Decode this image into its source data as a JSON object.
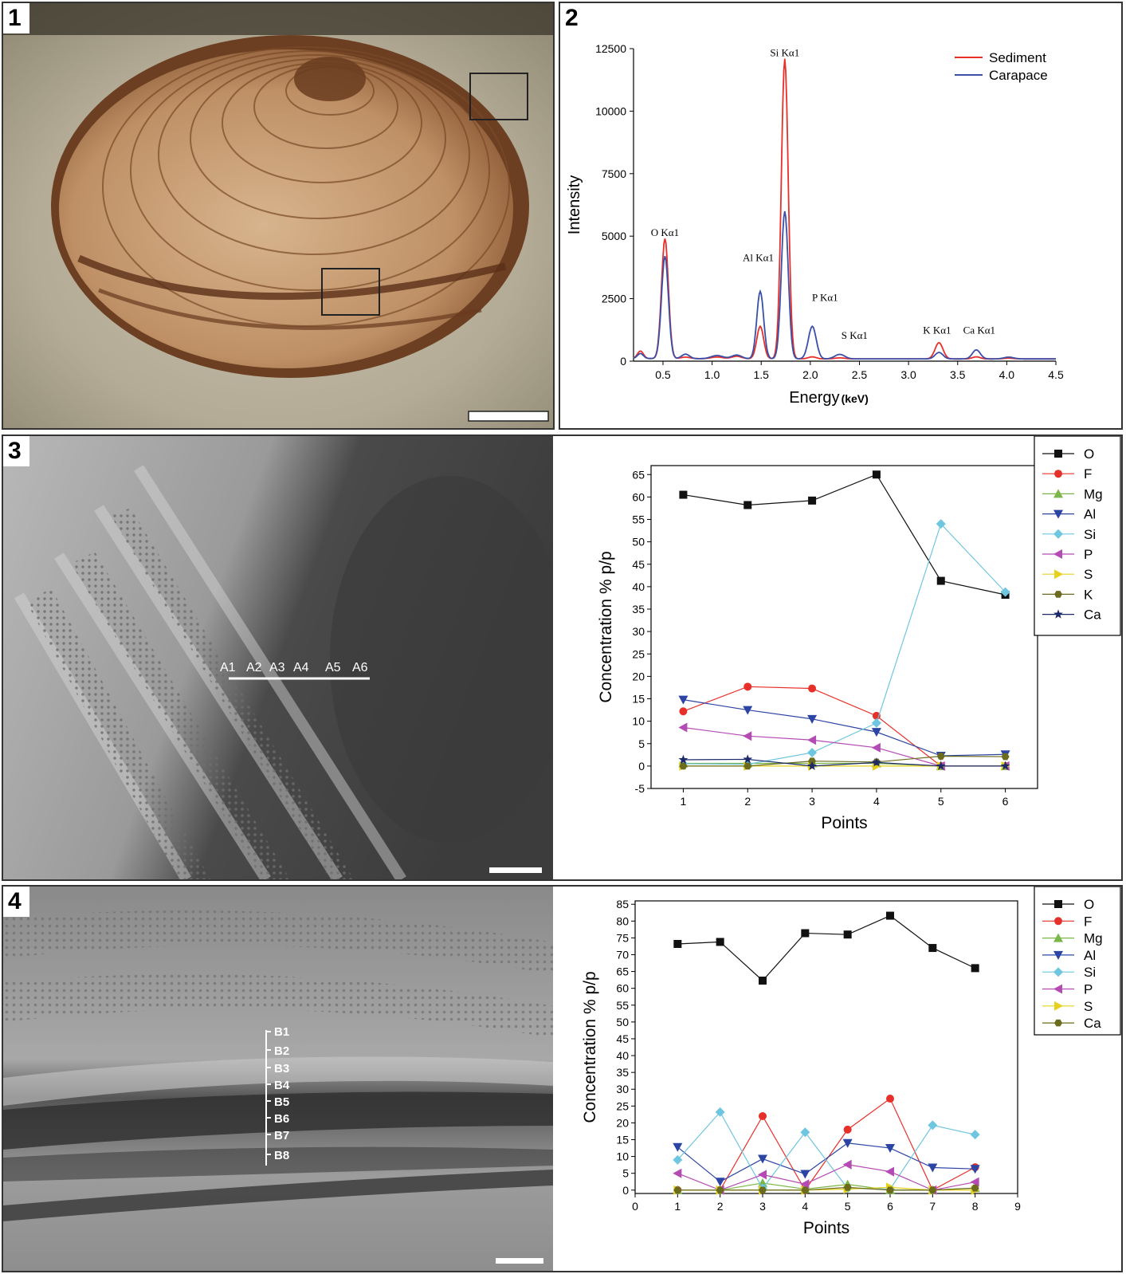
{
  "panels": [
    {
      "num": "1"
    },
    {
      "num": "2"
    },
    {
      "num": "3"
    },
    {
      "num": "4"
    }
  ],
  "photo3": {
    "transect_labels": [
      "A1",
      "A2",
      "A3",
      "A4",
      "A5",
      "A6"
    ]
  },
  "photo4": {
    "transect_labels": [
      "B1",
      "B2",
      "B3",
      "B4",
      "B5",
      "B6",
      "B7",
      "B8"
    ]
  },
  "chart_data": [
    {
      "id": "spectrum",
      "type": "line",
      "xlabel": "Energy",
      "xlabel_unit": "(keV)",
      "ylabel": "Intensity",
      "xlim": [
        0.2,
        4.5
      ],
      "ylim": [
        0,
        12500
      ],
      "xticks": [
        "0.5",
        "1.0",
        "1.5",
        "2.0",
        "2.5",
        "3.0",
        "3.5",
        "4.0",
        "4.5"
      ],
      "yticks": [
        "0",
        "2500",
        "5000",
        "7500",
        "10000",
        "12500"
      ],
      "legend_position": "top-right",
      "series": [
        {
          "name": "Sediment",
          "color": "#e8302a",
          "peaks": [
            [
              0.27,
              300,
              0.03
            ],
            [
              0.52,
              4800,
              0.035
            ],
            [
              0.73,
              60,
              0.05
            ],
            [
              1.05,
              70,
              0.06
            ],
            [
              1.25,
              100,
              0.05
            ],
            [
              1.49,
              1300,
              0.035
            ],
            [
              1.74,
              12000,
              0.035
            ],
            [
              2.02,
              80,
              0.04
            ],
            [
              2.3,
              40,
              0.05
            ],
            [
              3.31,
              650,
              0.04
            ],
            [
              3.69,
              80,
              0.04
            ],
            [
              4.02,
              30,
              0.05
            ]
          ]
        },
        {
          "name": "Carapace",
          "color": "#3a4fa8",
          "peaks": [
            [
              0.27,
              200,
              0.03
            ],
            [
              0.52,
              4100,
              0.035
            ],
            [
              0.73,
              180,
              0.04
            ],
            [
              1.05,
              130,
              0.06
            ],
            [
              1.25,
              150,
              0.05
            ],
            [
              1.49,
              2700,
              0.035
            ],
            [
              1.74,
              5900,
              0.035
            ],
            [
              2.02,
              1300,
              0.04
            ],
            [
              2.3,
              180,
              0.05
            ],
            [
              3.31,
              260,
              0.04
            ],
            [
              3.69,
              360,
              0.04
            ],
            [
              4.02,
              70,
              0.05
            ]
          ]
        }
      ],
      "annotations": [
        {
          "text": "O Kα1",
          "x": 0.52,
          "y": 5000
        },
        {
          "text": "Al Kα1",
          "x": 1.47,
          "y": 4000
        },
        {
          "text": "Si Kα1",
          "x": 1.74,
          "y": 12200
        },
        {
          "text": "P Kα1",
          "x": 2.15,
          "y": 2400
        },
        {
          "text": "S Kα1",
          "x": 2.45,
          "y": 900
        },
        {
          "text": "K Kα1",
          "x": 3.29,
          "y": 1100
        },
        {
          "text": "Ca Kα1",
          "x": 3.72,
          "y": 1100
        }
      ]
    },
    {
      "id": "points3",
      "type": "line",
      "xlabel": "Points",
      "ylabel": "Concentration % p/p",
      "xlim": [
        0.5,
        6.5
      ],
      "ylim": [
        -5,
        67
      ],
      "xticks": [
        "1",
        "2",
        "3",
        "4",
        "5",
        "6"
      ],
      "yticks": [
        "-5",
        "0",
        "5",
        "10",
        "15",
        "20",
        "25",
        "30",
        "35",
        "40",
        "45",
        "50",
        "55",
        "60",
        "65"
      ],
      "x": [
        1,
        2,
        3,
        4,
        5,
        6
      ],
      "legend_position": "right",
      "series": [
        {
          "name": "O",
          "color": "#111111",
          "marker": "square",
          "values": [
            60.5,
            58.2,
            59.2,
            65.0,
            41.3,
            38.2
          ]
        },
        {
          "name": "F",
          "color": "#e8302a",
          "marker": "circle",
          "values": [
            12.2,
            17.7,
            17.3,
            11.2,
            0,
            0
          ]
        },
        {
          "name": "Mg",
          "color": "#7ab648",
          "marker": "triangle-up",
          "values": [
            0.6,
            0.6,
            0.6,
            0.6,
            0,
            0
          ]
        },
        {
          "name": "Al",
          "color": "#2c45a5",
          "marker": "triangle-down",
          "values": [
            14.8,
            12.5,
            10.5,
            7.6,
            2.3,
            2.6
          ]
        },
        {
          "name": "Si",
          "color": "#6ec6e0",
          "marker": "diamond",
          "values": [
            0.5,
            0.4,
            3.0,
            9.6,
            54.0,
            38.8
          ]
        },
        {
          "name": "P",
          "color": "#b44ab4",
          "marker": "triangle-left",
          "values": [
            8.6,
            6.7,
            5.8,
            4.1,
            0,
            0
          ]
        },
        {
          "name": "S",
          "color": "#e6d21e",
          "marker": "triangle-right",
          "values": [
            0,
            0,
            0,
            0,
            0,
            0
          ]
        },
        {
          "name": "K",
          "color": "#6b6b1e",
          "marker": "hexagon",
          "values": [
            0,
            0,
            1.1,
            0.9,
            2.2,
            2.1
          ]
        },
        {
          "name": "Ca",
          "color": "#1c2a6a",
          "marker": "star",
          "values": [
            1.4,
            1.5,
            0,
            0.8,
            0,
            0
          ]
        }
      ]
    },
    {
      "id": "points4",
      "type": "line",
      "xlabel": "Points",
      "ylabel": "Concentration % p/p",
      "xlim": [
        0,
        9
      ],
      "ylim": [
        -1,
        86
      ],
      "xticks": [
        "0",
        "1",
        "2",
        "3",
        "4",
        "5",
        "6",
        "7",
        "8",
        "9"
      ],
      "yticks": [
        "0",
        "5",
        "10",
        "15",
        "20",
        "25",
        "30",
        "35",
        "40",
        "45",
        "50",
        "55",
        "60",
        "65",
        "70",
        "75",
        "80",
        "85"
      ],
      "x": [
        1,
        2,
        3,
        4,
        5,
        6,
        7,
        8
      ],
      "legend_position": "right",
      "series": [
        {
          "name": "O",
          "color": "#111111",
          "marker": "square",
          "values": [
            73.2,
            73.8,
            62.3,
            76.4,
            76.0,
            81.6,
            72.0,
            66.0
          ]
        },
        {
          "name": "F",
          "color": "#e8302a",
          "marker": "circle",
          "values": [
            0,
            0,
            22.0,
            0,
            18.0,
            27.2,
            0,
            6.8
          ]
        },
        {
          "name": "Mg",
          "color": "#7ab648",
          "marker": "triangle-up",
          "values": [
            0,
            0,
            2.1,
            0.3,
            1.7,
            0,
            0,
            0.6
          ]
        },
        {
          "name": "Al",
          "color": "#2c45a5",
          "marker": "triangle-down",
          "values": [
            12.8,
            2.5,
            9.3,
            4.8,
            14.0,
            12.5,
            6.7,
            6.3
          ]
        },
        {
          "name": "Si",
          "color": "#6ec6e0",
          "marker": "diamond",
          "values": [
            9.0,
            23.2,
            0.5,
            17.2,
            0.5,
            0.3,
            19.3,
            16.5
          ]
        },
        {
          "name": "P",
          "color": "#b44ab4",
          "marker": "triangle-left",
          "values": [
            5.0,
            0,
            4.6,
            1.8,
            7.6,
            5.5,
            0,
            2.4
          ]
        },
        {
          "name": "S",
          "color": "#e6d21e",
          "marker": "triangle-right",
          "values": [
            0,
            0,
            0,
            0,
            0.3,
            0.8,
            0,
            0
          ]
        },
        {
          "name": "Ca",
          "color": "#6b6b1e",
          "marker": "hexagon",
          "values": [
            0,
            0,
            0,
            0,
            0.8,
            0,
            0,
            0.6
          ]
        }
      ]
    }
  ]
}
